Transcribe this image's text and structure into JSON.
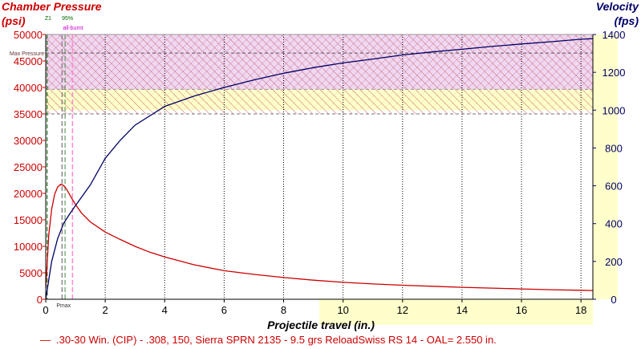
{
  "chart_data": {
    "type": "line",
    "xlabel": "Projectile travel (in.)",
    "x_ticks": [
      0,
      2,
      4,
      6,
      8,
      10,
      12,
      14,
      16,
      18
    ],
    "xlim": [
      0,
      18.4
    ],
    "left_axis": {
      "label_line1": "Chamber Pressure",
      "label_line2": "(psi)",
      "ylim": [
        0,
        50000
      ],
      "ticks": [
        0,
        5000,
        10000,
        15000,
        20000,
        25000,
        30000,
        35000,
        40000,
        45000,
        50000
      ],
      "color": "#cc0000"
    },
    "right_axis": {
      "label_line1": "Velocity",
      "label_line2": "(fps)",
      "ylim": [
        0,
        1400
      ],
      "ticks": [
        0,
        200,
        400,
        600,
        800,
        1000,
        1200,
        1400
      ],
      "color": "#000066"
    },
    "series": [
      {
        "name": ".30-30 Win. (CIP) - .308, 150, Sierra SPRN 2135 - 9.5 grs ReloadSwiss RS 14 - OAL= 2.550 in.",
        "axis": "left",
        "color": "#cc0000",
        "x": [
          0,
          0.05,
          0.1,
          0.2,
          0.3,
          0.4,
          0.5,
          0.6,
          0.7,
          0.8,
          0.9,
          1.0,
          1.2,
          1.5,
          2.0,
          2.5,
          3.0,
          3.5,
          4.0,
          5.0,
          6.0,
          7.0,
          8.0,
          9.0,
          10.0,
          11.0,
          12.0,
          13.0,
          14.0,
          15.0,
          16.0,
          17.0,
          18.0,
          18.4
        ],
        "y": [
          2200,
          7000,
          12000,
          17000,
          19800,
          21200,
          21700,
          21500,
          20800,
          19800,
          18800,
          17900,
          16300,
          14600,
          12700,
          11300,
          10000,
          8900,
          8000,
          6500,
          5400,
          4700,
          4100,
          3600,
          3200,
          2900,
          2650,
          2450,
          2250,
          2100,
          1950,
          1800,
          1700,
          1650
        ]
      },
      {
        "name": "velocity",
        "axis": "right",
        "color": "#000066",
        "x": [
          0,
          0.2,
          0.4,
          0.6,
          0.8,
          1.0,
          1.5,
          2.0,
          2.5,
          3.0,
          4.0,
          5.0,
          6.0,
          7.0,
          8.0,
          9.0,
          10.0,
          11.0,
          12.0,
          13.0,
          14.0,
          15.0,
          16.0,
          17.0,
          18.0,
          18.4
        ],
        "y": [
          0,
          200,
          320,
          400,
          450,
          495,
          605,
          745,
          840,
          920,
          1020,
          1075,
          1120,
          1160,
          1195,
          1225,
          1250,
          1270,
          1292,
          1308,
          1322,
          1337,
          1350,
          1362,
          1375,
          1378
        ]
      }
    ],
    "reference_lines": {
      "max_pressure": {
        "label": "Max Pressure",
        "value": 46500
      },
      "pmax": {
        "label": "Pmax",
        "x": 0.55
      },
      "z1": {
        "label": "Z1",
        "x": 0.05
      },
      "ninety_five": {
        "label": "95%",
        "x": 0.65
      },
      "all_burnt": {
        "label": "all-burnt",
        "x": 0.9
      }
    },
    "bands": {
      "pressure_band": [
        35000,
        50000
      ],
      "velocity_band_purple": [
        1110,
        1400
      ],
      "velocity_band_yellow": [
        1000,
        1110
      ],
      "x_band_yellow": [
        9.2,
        18.4
      ]
    },
    "legend": {
      "marker": "—",
      "text": ".30-30 Win. (CIP) - .308, 150, Sierra SPRN 2135 - 9.5 grs ReloadSwiss RS 14 - OAL= 2.550 in."
    }
  }
}
